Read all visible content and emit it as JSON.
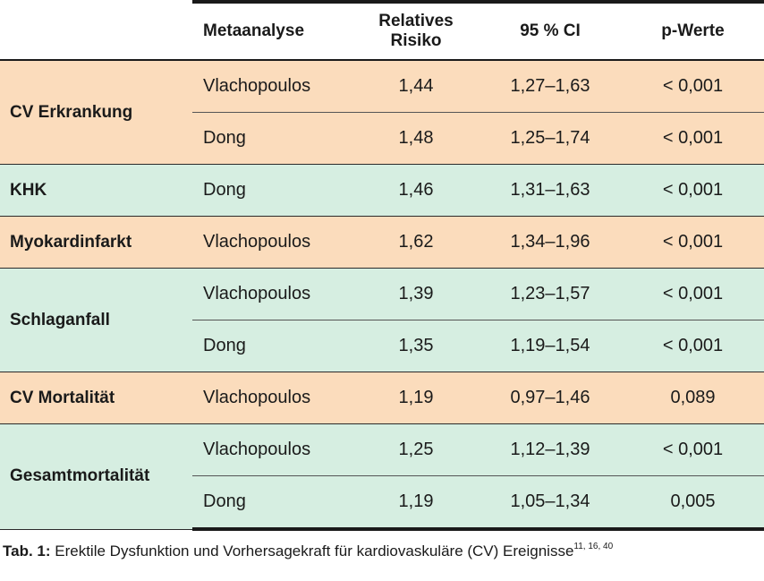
{
  "header": {
    "col_meta": "Metaanalyse",
    "col_rr_line1": "Relatives",
    "col_rr_line2": "Risiko",
    "col_ci": "95 % CI",
    "col_p": "p-Werte"
  },
  "groups": [
    {
      "category": "CV Erkrankung",
      "color": "#fbdcbc",
      "rows": [
        {
          "meta": "Vlachopoulos",
          "rr": "1,44",
          "ci": "1,27–1,63",
          "p": "< 0,001"
        },
        {
          "meta": "Dong",
          "rr": "1,48",
          "ci": "1,25–1,74",
          "p": "< 0,001"
        }
      ]
    },
    {
      "category": "KHK",
      "color": "#d6eee1",
      "rows": [
        {
          "meta": "Dong",
          "rr": "1,46",
          "ci": "1,31–1,63",
          "p": "< 0,001"
        }
      ]
    },
    {
      "category": "Myokardinfarkt",
      "color": "#fbdcbc",
      "rows": [
        {
          "meta": "Vlachopoulos",
          "rr": "1,62",
          "ci": "1,34–1,96",
          "p": "< 0,001"
        }
      ]
    },
    {
      "category": "Schlaganfall",
      "color": "#d6eee1",
      "rows": [
        {
          "meta": "Vlachopoulos",
          "rr": "1,39",
          "ci": "1,23–1,57",
          "p": "< 0,001"
        },
        {
          "meta": "Dong",
          "rr": "1,35",
          "ci": "1,19–1,54",
          "p": "< 0,001"
        }
      ]
    },
    {
      "category": "CV Mortalität",
      "color": "#fbdcbc",
      "rows": [
        {
          "meta": "Vlachopoulos",
          "rr": "1,19",
          "ci": "0,97–1,46",
          "p": "0,089"
        }
      ]
    },
    {
      "category": "Gesamtmortalität",
      "color": "#d6eee1",
      "rows": [
        {
          "meta": "Vlachopoulos",
          "rr": "1,25",
          "ci": "1,12–1,39",
          "p": "< 0,001"
        },
        {
          "meta": "Dong",
          "rr": "1,19",
          "ci": "1,05–1,34",
          "p": "0,005"
        }
      ]
    }
  ],
  "caption": {
    "label": "Tab. 1:",
    "text": " Erektile Dysfunktion und Vorhersagekraft für kardiovaskuläre (CV) Ereignisse",
    "refs": "11, 16, 40"
  }
}
